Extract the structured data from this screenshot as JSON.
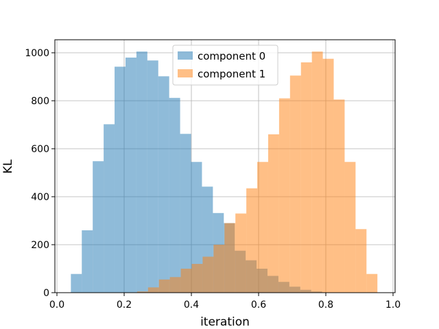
{
  "chart_data": {
    "type": "bar",
    "title": "",
    "xlabel": "iteration",
    "ylabel": "KL",
    "xlim": [
      0.0,
      1.0
    ],
    "ylim": [
      0,
      1050
    ],
    "xticks": [
      "0.0",
      "0.2",
      "0.4",
      "0.6",
      "0.8",
      "1.0"
    ],
    "yticks": [
      "0",
      "200",
      "400",
      "600",
      "800",
      "1000"
    ],
    "grid": true,
    "legend_position": "upper center",
    "bin_width": 0.0325,
    "series": [
      {
        "name": "component 0",
        "color": "#1f77b4",
        "alpha": 0.5,
        "bin_starts": [
          0.0415,
          0.074,
          0.1065,
          0.139,
          0.1715,
          0.204,
          0.2365,
          0.269,
          0.3015,
          0.334,
          0.3665,
          0.399,
          0.4315,
          0.464,
          0.4965,
          0.529,
          0.5615,
          0.594,
          0.6265,
          0.659,
          0.6915,
          0.724,
          0.7565
        ],
        "values": [
          78,
          260,
          548,
          702,
          942,
          980,
          1005,
          968,
          902,
          812,
          662,
          545,
          442,
          332,
          290,
          175,
          135,
          100,
          70,
          45,
          25,
          12,
          5
        ]
      },
      {
        "name": "component 1",
        "color": "#ff7f0e",
        "alpha": 0.5,
        "bin_starts": [
          0.2385,
          0.271,
          0.3035,
          0.336,
          0.3685,
          0.401,
          0.4335,
          0.466,
          0.4985,
          0.531,
          0.5635,
          0.596,
          0.6285,
          0.661,
          0.6935,
          0.726,
          0.7585,
          0.791,
          0.8235,
          0.856,
          0.8885,
          0.921
        ],
        "values": [
          5,
          22,
          55,
          65,
          100,
          120,
          150,
          200,
          290,
          330,
          435,
          545,
          660,
          810,
          905,
          960,
          1005,
          975,
          805,
          545,
          265,
          78
        ]
      }
    ]
  }
}
